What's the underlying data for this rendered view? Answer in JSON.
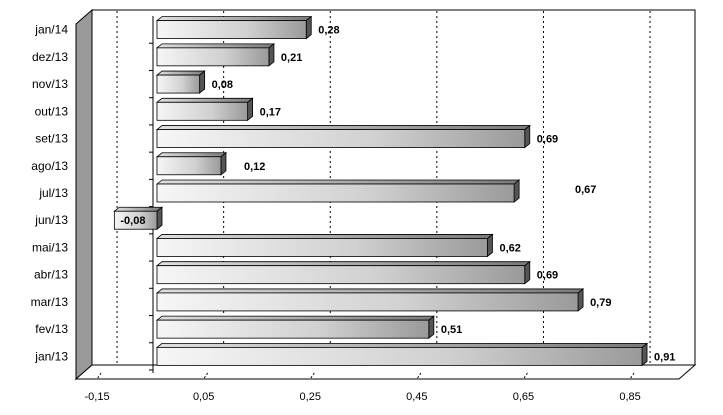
{
  "chart_data": {
    "type": "bar",
    "orientation": "horizontal",
    "categories": [
      "jan/14",
      "dez/13",
      "nov/13",
      "out/13",
      "set/13",
      "ago/13",
      "jul/13",
      "jun/13",
      "mai/13",
      "abr/13",
      "mar/13",
      "fev/13",
      "jan/13"
    ],
    "values": [
      0.28,
      0.21,
      0.08,
      0.17,
      0.69,
      0.12,
      0.67,
      -0.08,
      0.62,
      0.69,
      0.79,
      0.51,
      0.91
    ],
    "value_labels": [
      "0,28",
      "0,21",
      "0,08",
      "0,17",
      "0,69",
      "0,12",
      "0,67",
      "-0,08",
      "0,62",
      "0,69",
      "0,79",
      "0,51",
      "0,91"
    ],
    "x_ticks": [
      -0.15,
      0.05,
      0.25,
      0.45,
      0.65,
      0.85
    ],
    "x_tick_labels": [
      "-0,15",
      "0,05",
      "0,25",
      "0,45",
      "0,65",
      "0,85"
    ],
    "xlim": [
      -0.15,
      1.05
    ],
    "grid": "vertical-dotted",
    "title": "",
    "xlabel": "",
    "ylabel": "",
    "colors": {
      "bar_light": "#f4f4f4",
      "bar_dark": "#8c8c8c",
      "floor": "#9a9a9a",
      "wall": "#ffffff",
      "outline": "#000000"
    }
  }
}
